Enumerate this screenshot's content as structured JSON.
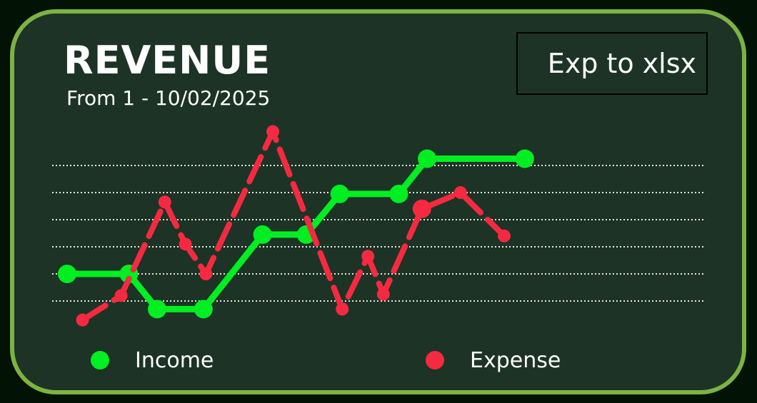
{
  "header": {
    "title": "REVENUE",
    "subtitle": "From 1 - 10/02/2025"
  },
  "toolbar": {
    "export_label": "Exp to xlsx"
  },
  "colors": {
    "card_border": "#7cb342",
    "card_bg": "#1d3326",
    "income": "#00ee22",
    "expense": "#f52a40",
    "grid": "#e8e8e8"
  },
  "chart_data": {
    "type": "line",
    "title": "REVENUE",
    "subtitle": "From 1 - 10/02/2025",
    "grid": true,
    "grid_style": "dotted horizontal",
    "ylim": [
      0,
      6
    ],
    "gridlines": [
      1,
      2,
      3,
      4,
      5,
      6
    ],
    "legend_placement": "bottom",
    "series": [
      {
        "name": "Income",
        "color": "#00ee22",
        "dash": "solid",
        "points": [
          {
            "x": 1.0,
            "y": 2.0
          },
          {
            "x": 2.2,
            "y": 2.0
          },
          {
            "x": 2.75,
            "y": 0.7
          },
          {
            "x": 3.65,
            "y": 0.7
          },
          {
            "x": 4.8,
            "y": 3.45
          },
          {
            "x": 5.65,
            "y": 3.45
          },
          {
            "x": 6.3,
            "y": 4.95
          },
          {
            "x": 7.45,
            "y": 4.95
          },
          {
            "x": 8.0,
            "y": 6.25
          },
          {
            "x": 9.9,
            "y": 6.25
          }
        ]
      },
      {
        "name": "Expense",
        "color": "#f52a40",
        "dash": "dashed",
        "points": [
          {
            "x": 1.3,
            "y": 0.3
          },
          {
            "x": 2.05,
            "y": 1.2
          },
          {
            "x": 2.9,
            "y": 4.65
          },
          {
            "x": 3.3,
            "y": 3.1
          },
          {
            "x": 3.7,
            "y": 2.0
          },
          {
            "x": 5.0,
            "y": 7.25
          },
          {
            "x": 6.35,
            "y": 0.7
          },
          {
            "x": 6.85,
            "y": 2.65
          },
          {
            "x": 7.15,
            "y": 1.25
          },
          {
            "x": 7.9,
            "y": 4.4
          },
          {
            "x": 8.65,
            "y": 5.0
          },
          {
            "x": 9.5,
            "y": 3.4
          }
        ]
      }
    ]
  }
}
